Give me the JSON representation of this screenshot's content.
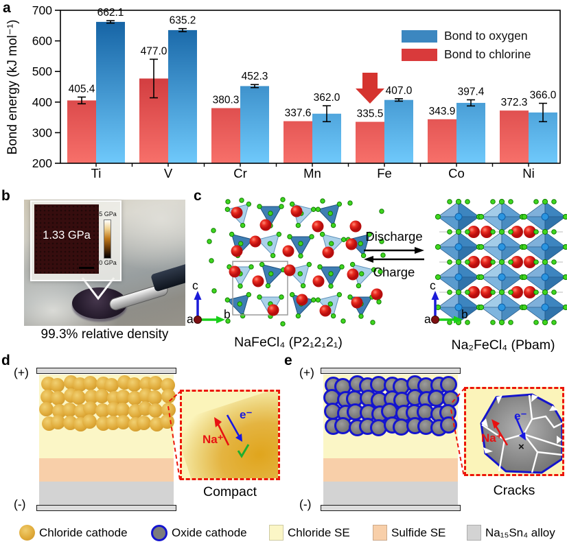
{
  "figure": {
    "panel_labels": {
      "a": "a",
      "b": "b",
      "c": "c",
      "d": "d",
      "e": "e"
    }
  },
  "chart_data": {
    "type": "bar",
    "title": "",
    "ylabel": "Bond energy (kJ mol⁻¹)",
    "xlabel": "",
    "categories": [
      "Ti",
      "V",
      "Cr",
      "Mn",
      "Fe",
      "Co",
      "Ni"
    ],
    "series": [
      {
        "name": "Bond to oxygen",
        "color": "#3c87c0",
        "gradient": [
          "#0f5c9e",
          "#6fc9fb"
        ],
        "values": [
          662.1,
          635.2,
          452.3,
          362.0,
          407.0,
          397.4,
          366.0
        ],
        "errors": [
          4,
          5,
          5,
          26,
          4,
          10,
          30
        ]
      },
      {
        "name": "Bond to chlorine",
        "color": "#d93a3b",
        "gradient": [
          "#b5151f",
          "#f7706a"
        ],
        "values": [
          405.4,
          477.0,
          380.3,
          337.6,
          335.5,
          343.9,
          372.3
        ],
        "errors": [
          11,
          63,
          0,
          0,
          0,
          0,
          0
        ]
      }
    ],
    "ylim": [
      200,
      700
    ],
    "yticks": [
      200,
      300,
      400,
      500,
      600,
      700
    ],
    "grid": false,
    "legend_position": "top-right",
    "annotation": {
      "shape": "down-arrow",
      "color": "#d5342f",
      "category": "Fe",
      "series": 1
    }
  },
  "panel_b": {
    "inset_value": "1.33 GPa",
    "scale_max": "5 GPa",
    "scale_min": "0 GPa",
    "caption": "99.3% relative density"
  },
  "panel_c": {
    "left_caption": "NaFeCl₄ (P2₁2₁2₁)",
    "right_caption": "Na₂FeCl₄ (Pbam)",
    "forward_label": "Discharge",
    "backward_label": "Charge",
    "axis_a": "a",
    "axis_b": "b",
    "axis_c": "c"
  },
  "panel_d": {
    "positive": "(+)",
    "negative": "(-)",
    "na_label": "Na⁺",
    "e_label": "e⁻",
    "check": "✓",
    "caption": "Compact"
  },
  "panel_e": {
    "positive": "(+)",
    "negative": "(-)",
    "na_label": "Na⁺",
    "e_label": "e⁻",
    "cross": "×",
    "caption": "Cracks"
  },
  "bottom_legend": {
    "items": [
      {
        "label": "Chloride cathode",
        "swatch": "gold-circle",
        "color": "#e0ab3a"
      },
      {
        "label": "Oxide cathode",
        "swatch": "gray-circle-blue-ring",
        "color": "#7c7c7c"
      },
      {
        "label": "Chloride SE",
        "swatch": "square",
        "color": "#fbf6c6"
      },
      {
        "label": "Sulfide SE",
        "swatch": "square",
        "color": "#f8cfa9"
      },
      {
        "label": "Na₁₅Sn₄ alloy",
        "swatch": "square",
        "color": "#d3d3d3"
      }
    ]
  }
}
